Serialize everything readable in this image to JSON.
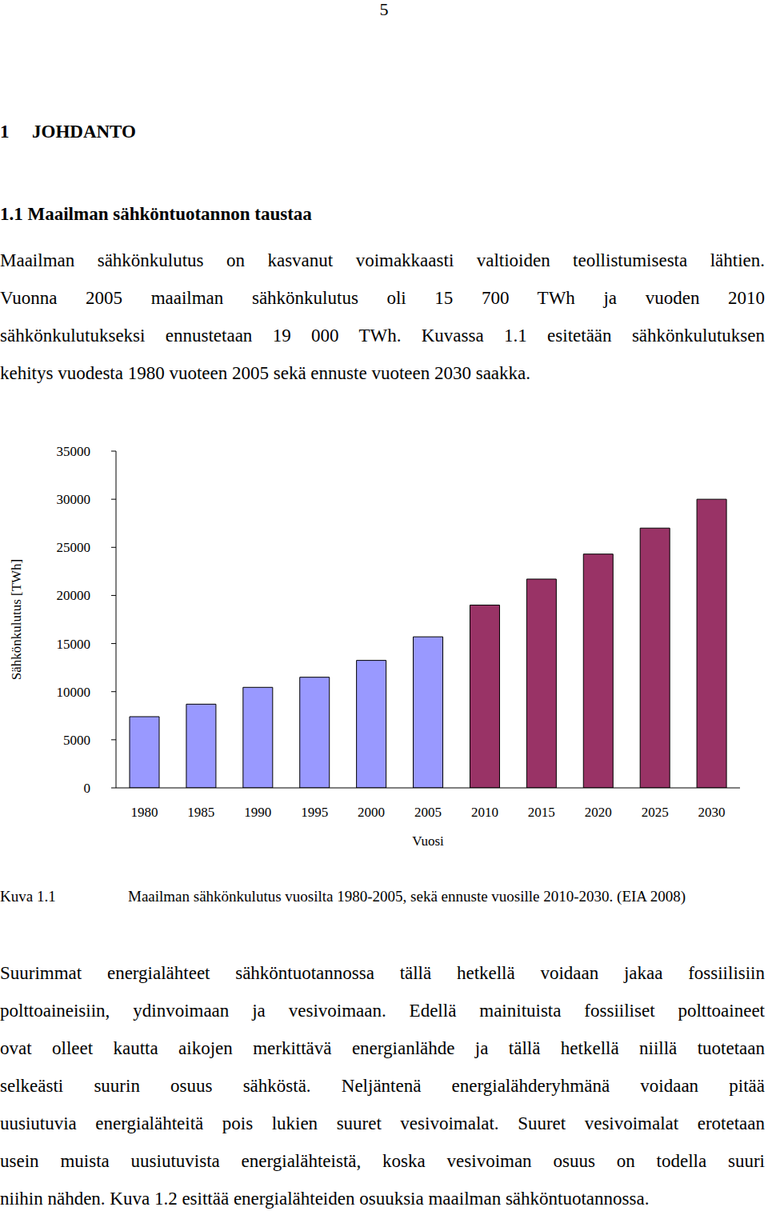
{
  "page_number": "5",
  "heading": {
    "number": "1",
    "text": "JOHDANTO"
  },
  "subheading": "1.1 Maailman sähköntuotannon taustaa",
  "intro_paragraph": [
    "Maailman sähkönkulutus on kasvanut voimakkaasti valtioiden teollistumisesta lähtien.",
    "Vuonna 2005 maailman sähkönkulutus oli 15 700 TWh ja vuoden 2010",
    "sähkönkulutukseksi ennustetaan 19 000 TWh. Kuvassa 1.1 esitetään sähkönkulutuksen",
    "kehitys vuodesta 1980 vuoteen 2005 sekä ennuste vuoteen 2030 saakka."
  ],
  "chart_data": {
    "type": "bar",
    "x_label": "Vuosi",
    "y_label": "Sähkönkulutus [TWh]",
    "categories": [
      "1980",
      "1985",
      "1990",
      "1995",
      "2000",
      "2005",
      "2010",
      "2015",
      "2020",
      "2025",
      "2030"
    ],
    "values": [
      7400,
      8700,
      10450,
      11500,
      13250,
      15700,
      19000,
      21700,
      24300,
      27000,
      30000
    ],
    "colors": [
      "#9999ff",
      "#9999ff",
      "#9999ff",
      "#9999ff",
      "#9999ff",
      "#9999ff",
      "#993366",
      "#993366",
      "#993366",
      "#993366",
      "#993366"
    ],
    "ylim": [
      0,
      35000
    ],
    "yticks": [
      0,
      5000,
      10000,
      15000,
      20000,
      25000,
      30000,
      35000
    ],
    "grid": false
  },
  "caption": {
    "label": "Kuva 1.1",
    "text": "Maailman sähkönkulutus vuosilta 1980-2005, sekä ennuste vuosille 2010-2030. (EIA 2008)"
  },
  "body_paragraph": [
    "Suurimmat energialähteet sähköntuotannossa tällä hetkellä voidaan jakaa fossiilisiin",
    "polttoaineisiin, ydinvoimaan ja vesivoimaan. Edellä mainituista fossiiliset polttoaineet",
    "ovat olleet kautta aikojen merkittävä energianlähde ja tällä hetkellä niillä tuotetaan",
    "selkeästi suurin osuus sähköstä. Neljäntenä energialähderyhmänä voidaan pitää",
    "uusiutuvia energialähteitä pois lukien suuret vesivoimalat. Suuret vesivoimalat erotetaan",
    "usein muista uusiutuvista energialähteistä, koska vesivoiman osuus on todella suuri",
    "niihin nähden. Kuva 1.2 esittää energialähteiden osuuksia maailman sähköntuotannossa."
  ]
}
